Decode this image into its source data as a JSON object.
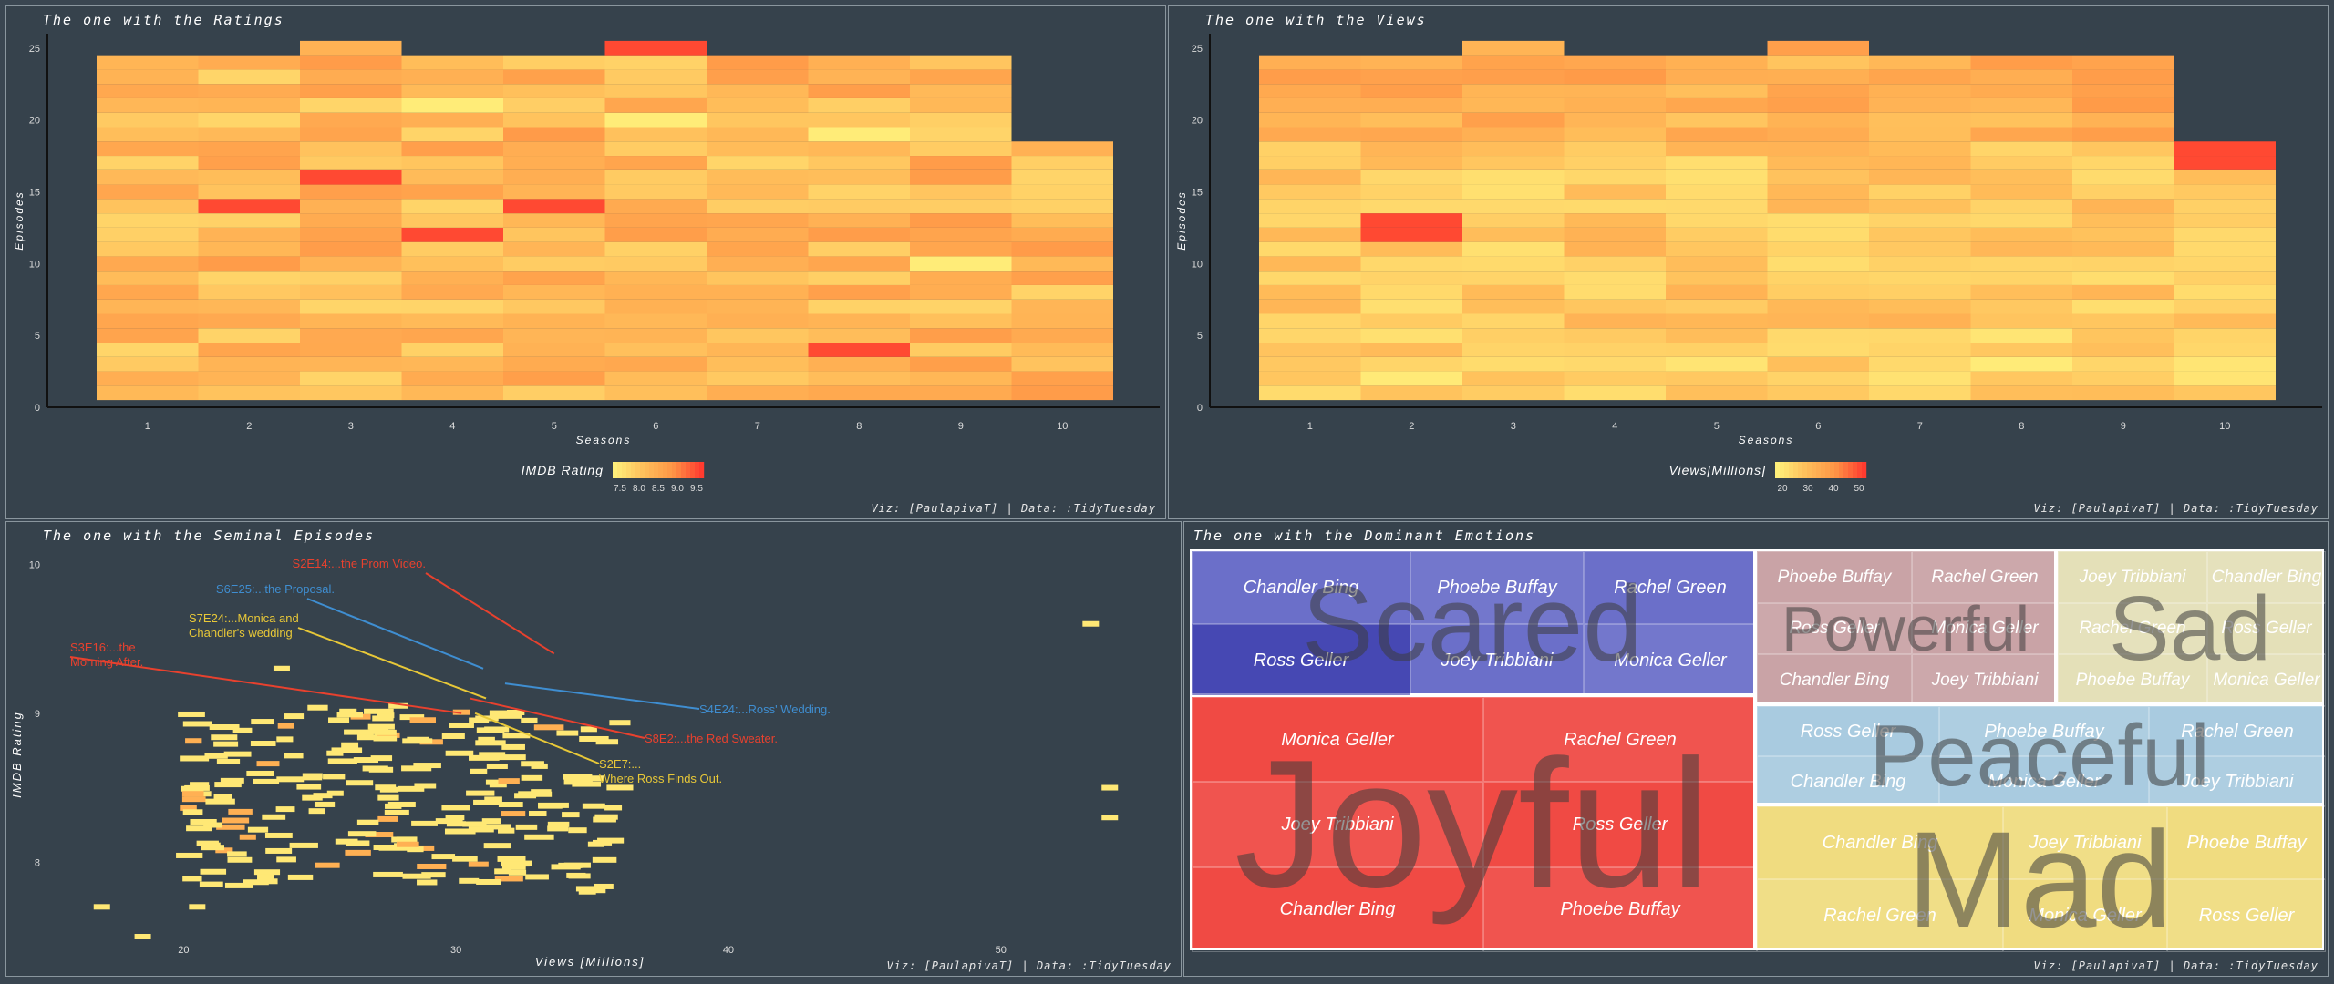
{
  "colors": {
    "panel_bg": "#36424c",
    "low": "#ffef7a",
    "high": "#ff3b2f"
  },
  "panels": {
    "ratings_title": "The one with the Ratings",
    "views_title": "The one with the Views",
    "seminal_title": "The one with the Seminal Episodes",
    "emotions_title": "The one with the Dominant Emotions",
    "credit": "Viz: [PaulapivaT] | Data: :TidyTuesday"
  },
  "ratings_chart": {
    "type": "heatmap",
    "xlabel": "Seasons",
    "ylabel": "Episodes",
    "x_ticks": [
      "1",
      "2",
      "3",
      "4",
      "5",
      "6",
      "7",
      "8",
      "9",
      "10"
    ],
    "y_ticks": [
      "0",
      "5",
      "10",
      "15",
      "20",
      "25"
    ],
    "ylim": [
      0,
      26
    ],
    "episodes_per_season": [
      24,
      24,
      25,
      24,
      24,
      25,
      24,
      24,
      24,
      18
    ],
    "legend_title": "IMDB Rating",
    "legend_ticks": [
      "7.5",
      "8.0",
      "8.5",
      "9.0",
      "9.5"
    ],
    "hot_cells": [
      {
        "season": 4,
        "episode": 12
      },
      {
        "season": 5,
        "episode": 14
      },
      {
        "season": 2,
        "episode": 14
      },
      {
        "season": 8,
        "episode": 4
      },
      {
        "season": 3,
        "episode": 16
      },
      {
        "season": 6,
        "episode": 25
      }
    ],
    "low_cells": [
      {
        "season": 4,
        "episode": 21
      },
      {
        "season": 6,
        "episode": 20
      },
      {
        "season": 9,
        "episode": 10
      },
      {
        "season": 8,
        "episode": 19
      }
    ]
  },
  "views_chart": {
    "type": "heatmap",
    "xlabel": "Seasons",
    "ylabel": "Episodes",
    "x_ticks": [
      "1",
      "2",
      "3",
      "4",
      "5",
      "6",
      "7",
      "8",
      "9",
      "10"
    ],
    "y_ticks": [
      "0",
      "5",
      "10",
      "15",
      "20",
      "25"
    ],
    "ylim": [
      0,
      26
    ],
    "episodes_per_season": [
      24,
      24,
      25,
      24,
      24,
      25,
      24,
      24,
      24,
      18
    ],
    "legend_title": "Views[Millions]",
    "legend_ticks": [
      "20",
      "30",
      "40",
      "50"
    ],
    "hot_cells": [
      {
        "season": 2,
        "episode": 12
      },
      {
        "season": 2,
        "episode": 13
      },
      {
        "season": 10,
        "episode": 17
      },
      {
        "season": 10,
        "episode": 18
      }
    ]
  },
  "seminal_chart": {
    "type": "scatter",
    "xlabel": "Views [Millions]",
    "ylabel": "IMDB Rating",
    "x_ticks": [
      "20",
      "30",
      "40",
      "50"
    ],
    "y_ticks": [
      "8",
      "9",
      "10"
    ],
    "xlim": [
      15,
      56
    ],
    "ylim": [
      7.5,
      10.1
    ],
    "annotations": [
      {
        "label": "S2E14:...the Prom Video.",
        "color": "#e8412e",
        "x": 33.6,
        "y": 9.4
      },
      {
        "label": "S6E25:...the Proposal.",
        "color": "#3f8ed1",
        "x": 31.0,
        "y": 9.3
      },
      {
        "label": "S7E24:...Monica and\nChandler's wedding",
        "color": "#e8c838",
        "x": 31.1,
        "y": 9.1
      },
      {
        "label": "S3E16:...the\nMorning After.",
        "color": "#e8412e",
        "x": 30.2,
        "y": 9.0
      },
      {
        "label": "S4E24:...Ross' Wedding.",
        "color": "#3f8ed1",
        "x": 31.8,
        "y": 9.2
      },
      {
        "label": "S8E2:...the Red Sweater.",
        "color": "#e8412e",
        "x": 30.5,
        "y": 9.1
      },
      {
        "label": "S2E7:...\nWhere Ross Finds Out.",
        "color": "#e8c838",
        "x": 30.7,
        "y": 9.0
      }
    ]
  },
  "emotions": {
    "type": "treemap",
    "groups": [
      {
        "emotion": "Scared",
        "color": "#6b6fc9",
        "cells": [
          "Chandler Bing",
          "Phoebe Buffay",
          "Rachel Green",
          "Ross Geller",
          "Joey Tribbiani",
          "Monica Geller"
        ]
      },
      {
        "emotion": "Joyful",
        "color": "#f04a44",
        "cells": [
          "Monica Geller",
          "Rachel Green",
          "Joey Tribbiani",
          "Ross Geller",
          "Chandler Bing",
          "Phoebe Buffay"
        ]
      },
      {
        "emotion": "Powerful",
        "color": "#c9a3a6",
        "cells": [
          "Phoebe Buffay",
          "Rachel Green",
          "Ross Geller",
          "Monica Geller",
          "Chandler Bing",
          "Joey Tribbiani"
        ]
      },
      {
        "emotion": "Sad",
        "color": "#e4e0b8",
        "cells": [
          "Joey Tribbiani",
          "Chandler Bing",
          "Rachel Green",
          "Ross Geller",
          "Phoebe Buffay",
          "Monica Geller"
        ]
      },
      {
        "emotion": "Peaceful",
        "color": "#a9cbe0",
        "cells": [
          "Ross Geller",
          "Phoebe Buffay",
          "Rachel Green",
          "Chandler Bing",
          "Monica Geller",
          "Joey Tribbiani"
        ]
      },
      {
        "emotion": "Mad",
        "color": "#f0dc80",
        "cells": [
          "Chandler Bing",
          "Joey Tribbiani",
          "Phoebe Buffay",
          "Rachel Green",
          "Monica Geller",
          "Ross Geller"
        ]
      }
    ]
  }
}
